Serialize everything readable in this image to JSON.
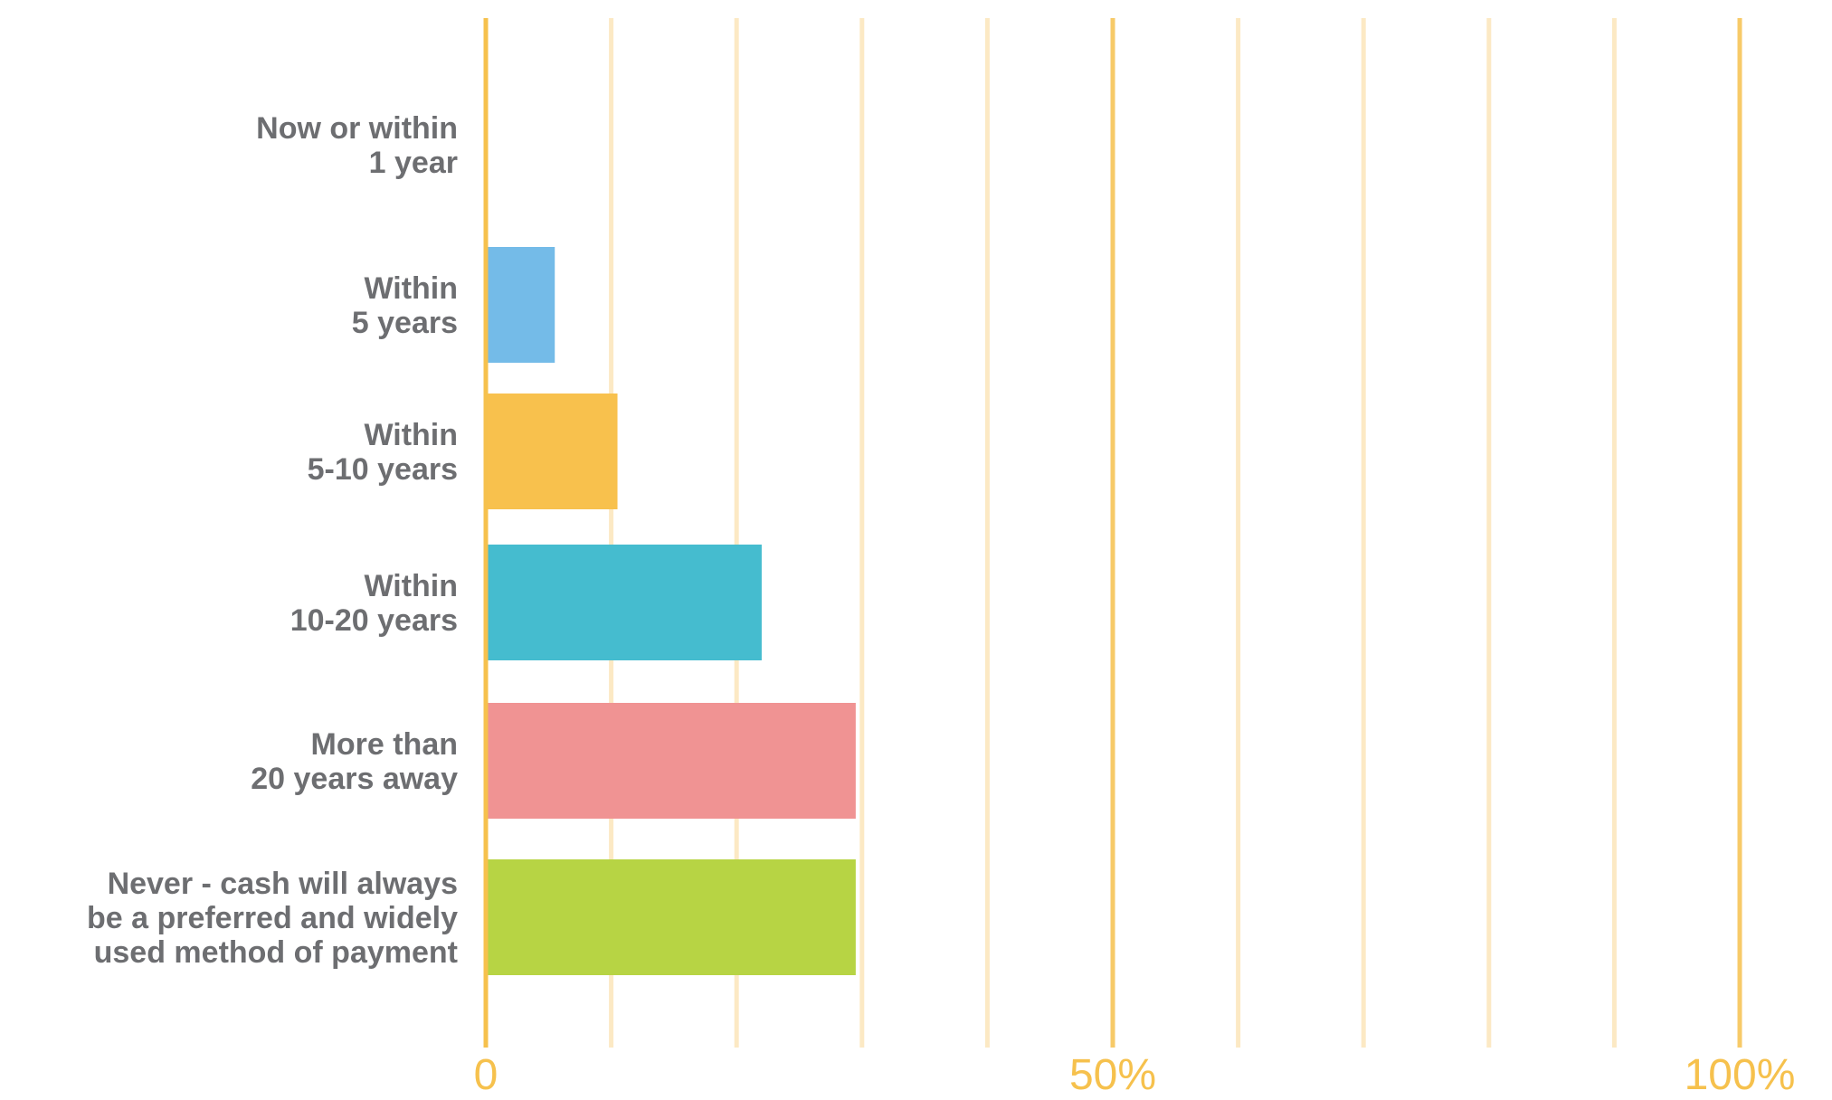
{
  "chart_data": {
    "type": "bar",
    "orientation": "horizontal",
    "title": "",
    "xlabel": "",
    "ylabel": "",
    "categories": [
      [
        "Now or within",
        "1 year"
      ],
      [
        "Within",
        "5 years"
      ],
      [
        "Within",
        "5-10 years"
      ],
      [
        "Within",
        "10-20 years"
      ],
      [
        "More than",
        "20 years away"
      ],
      [
        "Never - cash will always",
        "be a preferred and widely",
        "used method of payment"
      ]
    ],
    "values": [
      0,
      5.5,
      10.5,
      22,
      29.5,
      29.5
    ],
    "bar_colors": [
      "#ffffff",
      "#74bbe8",
      "#f8c14d",
      "#45bccf",
      "#f09393",
      "#b7d444"
    ],
    "xlim": [
      0,
      100
    ],
    "x_tick_labels": [
      {
        "value": 0,
        "label": "0"
      },
      {
        "value": 50,
        "label": "50%"
      },
      {
        "value": 100,
        "label": "100%"
      }
    ],
    "gridlines_every": 10,
    "grid": true,
    "legend": "none"
  },
  "colors": {
    "axis": "#f6c14d",
    "gridline": "#fce9c4",
    "tick_text": "#f6c14d",
    "category_text": "#6d6e71"
  }
}
